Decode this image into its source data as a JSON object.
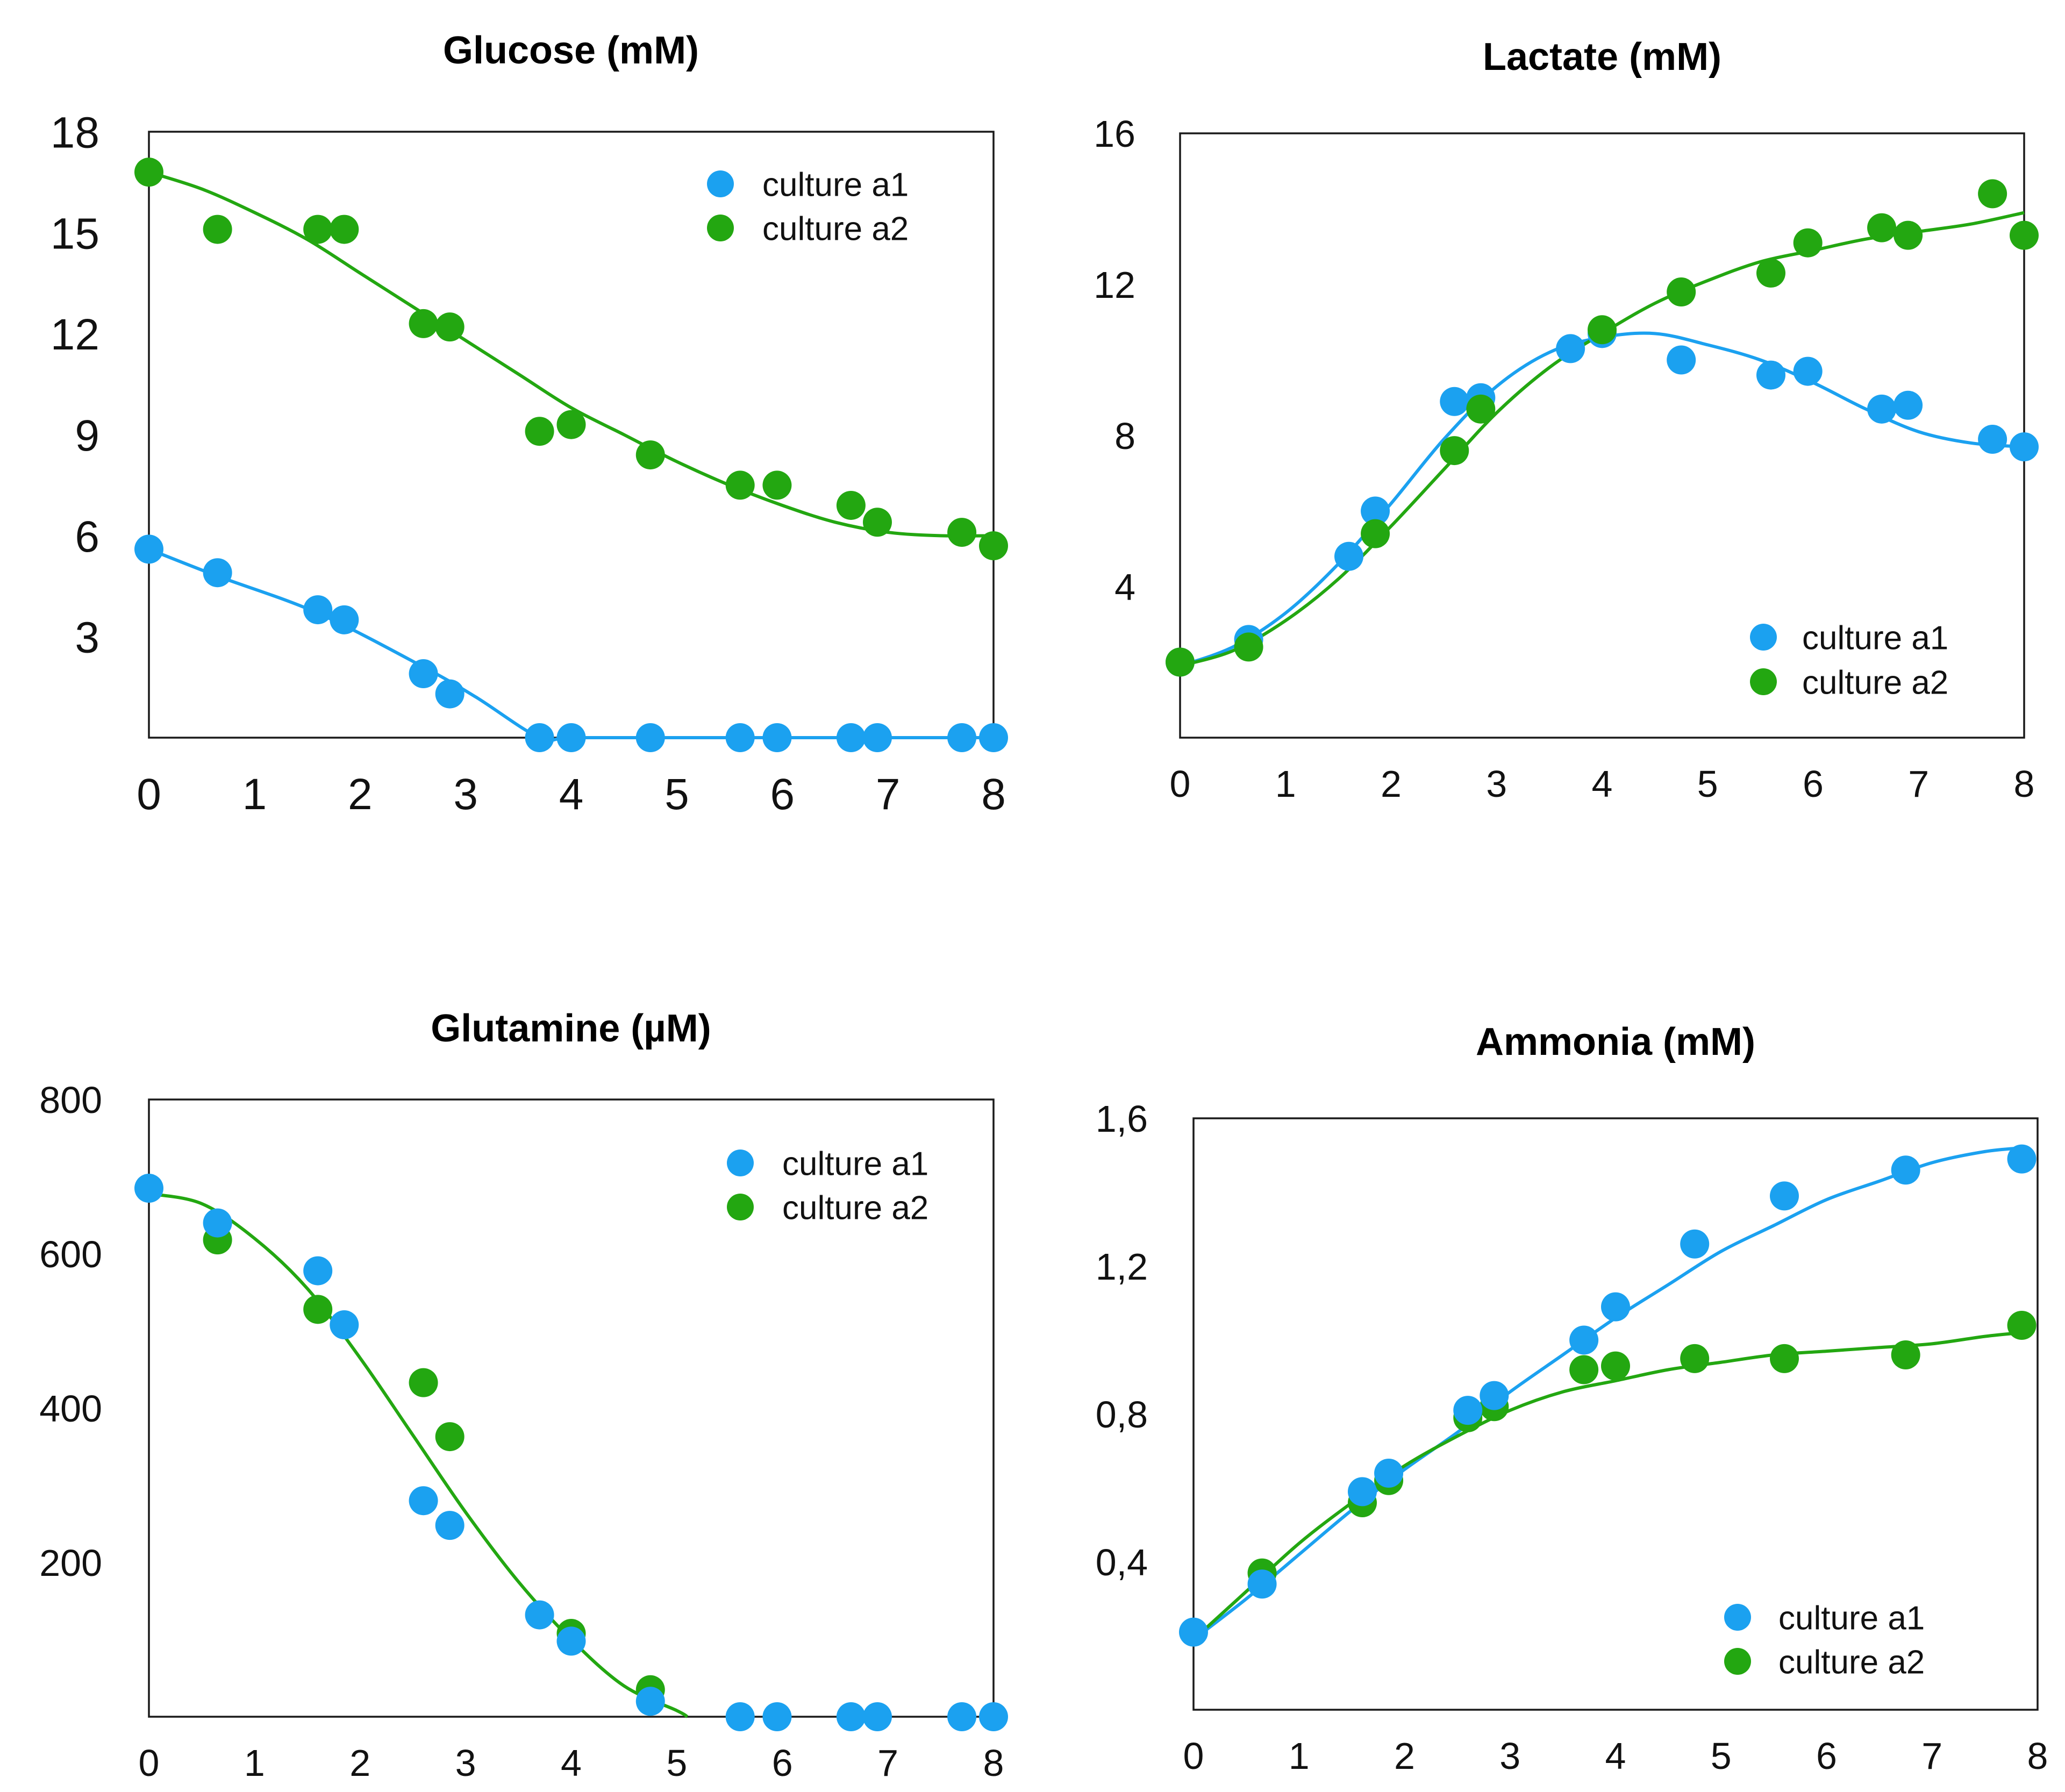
{
  "colors": {
    "culture_a1": "#1ba1f0",
    "culture_a2": "#23a711"
  },
  "chart_data": [
    {
      "id": "glucose",
      "type": "scatter",
      "title": "Glucose (mM)",
      "xlabel": "",
      "ylabel": "",
      "xlim": [
        0,
        8
      ],
      "ylim": [
        0,
        18
      ],
      "x_ticks": [
        0,
        1,
        2,
        3,
        4,
        5,
        6,
        7,
        8
      ],
      "x_tick_labels": [
        "0",
        "1",
        "2",
        "3",
        "4",
        "5",
        "6",
        "7",
        "8"
      ],
      "y_ticks": [
        3,
        6,
        9,
        12,
        15,
        18
      ],
      "y_tick_labels": [
        "3",
        "6",
        "9",
        "12",
        "15",
        "18"
      ],
      "legend": {
        "position": "top-right",
        "entries": [
          "culture a1",
          "culture a2"
        ]
      },
      "series": [
        {
          "name": "culture a1",
          "x": [
            0,
            0.65,
            1.6,
            1.85,
            2.6,
            2.85,
            3.7,
            4.0,
            4.75,
            5.6,
            5.95,
            6.65,
            6.9,
            7.7,
            8.0
          ],
          "y": [
            5.6,
            4.9,
            3.8,
            3.5,
            1.9,
            1.3,
            0,
            0,
            0,
            0,
            0,
            0,
            0,
            0,
            0
          ],
          "fit_x": [
            0,
            0.65,
            1.6,
            2.6,
            3.1,
            3.7,
            4.0,
            5.0,
            6.0,
            7.0,
            8.0
          ],
          "fit_y": [
            5.6,
            4.8,
            3.7,
            2.1,
            1.2,
            0,
            0,
            0,
            0,
            0,
            0
          ]
        },
        {
          "name": "culture a2",
          "x": [
            0,
            0.65,
            1.6,
            1.85,
            2.6,
            2.85,
            3.7,
            4.0,
            4.75,
            5.6,
            5.95,
            6.65,
            6.9,
            7.7,
            8.0
          ],
          "y": [
            16.8,
            15.1,
            15.1,
            15.1,
            12.3,
            12.2,
            9.1,
            9.3,
            8.4,
            7.5,
            7.5,
            6.9,
            6.4,
            6.1,
            5.7
          ],
          "fit_x": [
            0,
            0.5,
            1.0,
            1.5,
            2.0,
            2.5,
            3.0,
            3.5,
            4.0,
            4.5,
            5.0,
            5.5,
            6.0,
            6.5,
            7.0,
            7.5,
            8.0
          ],
          "fit_y": [
            16.8,
            16.3,
            15.6,
            14.8,
            13.8,
            12.8,
            11.8,
            10.8,
            9.8,
            9.0,
            8.2,
            7.5,
            6.9,
            6.4,
            6.1,
            6.0,
            6.0
          ]
        }
      ]
    },
    {
      "id": "lactate",
      "type": "scatter",
      "title": "Lactate (mM)",
      "xlabel": "",
      "ylabel": "",
      "xlim": [
        0,
        8
      ],
      "ylim": [
        0,
        16
      ],
      "x_ticks": [
        0,
        1,
        2,
        3,
        4,
        5,
        6,
        7,
        8
      ],
      "x_tick_labels": [
        "0",
        "1",
        "2",
        "3",
        "4",
        "5",
        "6",
        "7",
        "8"
      ],
      "y_ticks": [
        4,
        8,
        12,
        16
      ],
      "y_tick_labels": [
        "4",
        "8",
        "12",
        "16"
      ],
      "legend": {
        "position": "bottom-right",
        "entries": [
          "culture a1",
          "culture a2"
        ]
      },
      "series": [
        {
          "name": "culture a1",
          "x": [
            0,
            0.65,
            1.6,
            1.85,
            2.6,
            2.85,
            3.7,
            4.0,
            4.75,
            5.6,
            5.95,
            6.65,
            6.9,
            7.7,
            8.0
          ],
          "y": [
            2.0,
            2.6,
            4.8,
            6.0,
            8.9,
            9.0,
            10.3,
            10.7,
            10.0,
            9.6,
            9.7,
            8.7,
            8.8,
            7.9,
            7.7
          ],
          "fit_x": [
            0,
            0.5,
            1.0,
            1.5,
            2.0,
            2.5,
            3.0,
            3.5,
            4.0,
            4.5,
            5.0,
            5.5,
            6.0,
            6.5,
            7.0,
            7.5,
            8.0
          ],
          "fit_y": [
            1.9,
            2.4,
            3.3,
            4.6,
            6.2,
            7.9,
            9.3,
            10.2,
            10.6,
            10.7,
            10.4,
            10.0,
            9.4,
            8.7,
            8.1,
            7.8,
            7.7
          ]
        },
        {
          "name": "culture a2",
          "x": [
            0,
            0.65,
            1.85,
            2.6,
            2.85,
            4.0,
            4.75,
            5.6,
            5.95,
            6.65,
            6.9,
            7.7,
            8.0
          ],
          "y": [
            2.0,
            2.4,
            5.4,
            7.6,
            8.7,
            10.8,
            11.8,
            12.3,
            13.1,
            13.5,
            13.3,
            14.4,
            13.3
          ],
          "fit_x": [
            0,
            0.5,
            1.0,
            1.5,
            2.0,
            2.5,
            3.0,
            3.5,
            4.0,
            4.5,
            5.0,
            5.5,
            6.0,
            6.5,
            7.0,
            7.5,
            8.0
          ],
          "fit_y": [
            1.9,
            2.3,
            3.1,
            4.2,
            5.6,
            7.1,
            8.6,
            9.8,
            10.7,
            11.5,
            12.1,
            12.6,
            12.9,
            13.2,
            13.4,
            13.6,
            13.9
          ]
        }
      ]
    },
    {
      "id": "glutamine",
      "type": "scatter",
      "title": "Glutamine (µM)",
      "xlabel": "",
      "ylabel": "",
      "xlim": [
        0,
        8
      ],
      "ylim": [
        0,
        800
      ],
      "x_ticks": [
        0,
        1,
        2,
        3,
        4,
        5,
        6,
        7,
        8
      ],
      "x_tick_labels": [
        "0",
        "1",
        "2",
        "3",
        "4",
        "5",
        "6",
        "7",
        "8"
      ],
      "y_ticks": [
        200,
        400,
        600,
        800
      ],
      "y_tick_labels": [
        "200",
        "400",
        "600",
        "800"
      ],
      "legend": {
        "position": "top-right",
        "entries": [
          "culture a1",
          "culture a2"
        ]
      },
      "series": [
        {
          "name": "culture a1",
          "x": [
            0,
            0.65,
            1.6,
            1.85,
            2.6,
            2.85,
            3.7,
            4.0,
            4.75,
            5.6,
            5.95,
            6.65,
            6.9,
            7.7,
            8.0
          ],
          "y": [
            685,
            640,
            578,
            508,
            280,
            248,
            132,
            98,
            20,
            0,
            0,
            0,
            0,
            0,
            0
          ]
        },
        {
          "name": "culture a2",
          "x": [
            0.65,
            1.6,
            2.6,
            2.85,
            4.0,
            4.75
          ],
          "y": [
            618,
            528,
            433,
            363,
            108,
            35
          ],
          "fit_x": [
            0,
            0.5,
            1.0,
            1.5,
            2.0,
            2.5,
            3.0,
            3.5,
            4.0,
            4.5,
            5.0,
            5.1
          ],
          "fit_y": [
            678,
            665,
            620,
            555,
            465,
            365,
            265,
            175,
            100,
            40,
            8,
            0
          ]
        }
      ]
    },
    {
      "id": "ammonia",
      "type": "scatter",
      "title": "Ammonia (mM)",
      "xlabel": "",
      "ylabel": "",
      "xlim": [
        0,
        8
      ],
      "ylim": [
        0,
        1.6
      ],
      "x_ticks": [
        0,
        1,
        2,
        3,
        4,
        5,
        6,
        7,
        8
      ],
      "x_tick_labels": [
        "0",
        "1",
        "2",
        "3",
        "4",
        "5",
        "6",
        "7",
        "8"
      ],
      "y_ticks": [
        0.4,
        0.8,
        1.2,
        1.6
      ],
      "y_tick_labels": [
        "0,4",
        "0,8",
        "1,2",
        "1,6"
      ],
      "legend": {
        "position": "bottom-right",
        "entries": [
          "culture a1",
          "culture a2"
        ]
      },
      "series": [
        {
          "name": "culture a1",
          "x": [
            0,
            0.65,
            1.6,
            1.85,
            2.6,
            2.85,
            3.7,
            4.0,
            4.75,
            5.6,
            6.75,
            7.85
          ],
          "y": [
            0.21,
            0.34,
            0.59,
            0.64,
            0.81,
            0.85,
            1.0,
            1.09,
            1.26,
            1.39,
            1.46,
            1.49
          ],
          "fit_x": [
            0,
            0.5,
            1.0,
            1.5,
            2.0,
            2.5,
            3.0,
            3.5,
            4.0,
            4.5,
            5.0,
            5.5,
            6.0,
            6.5,
            7.0,
            7.5,
            7.85
          ],
          "fit_y": [
            0.19,
            0.3,
            0.42,
            0.54,
            0.65,
            0.75,
            0.86,
            0.96,
            1.06,
            1.15,
            1.24,
            1.31,
            1.38,
            1.43,
            1.48,
            1.51,
            1.52
          ]
        },
        {
          "name": "culture a2",
          "x": [
            0.65,
            1.6,
            1.85,
            2.6,
            2.85,
            3.7,
            4.0,
            4.75,
            5.6,
            6.75,
            7.85
          ],
          "y": [
            0.37,
            0.56,
            0.62,
            0.79,
            0.82,
            0.92,
            0.93,
            0.95,
            0.95,
            0.96,
            1.04
          ],
          "fit_x": [
            0,
            0.5,
            1.0,
            1.5,
            2.0,
            2.5,
            3.0,
            3.5,
            4.0,
            4.5,
            5.0,
            5.5,
            6.0,
            6.5,
            7.0,
            7.5,
            7.85
          ],
          "fit_y": [
            0.19,
            0.32,
            0.45,
            0.56,
            0.66,
            0.74,
            0.81,
            0.86,
            0.89,
            0.92,
            0.94,
            0.96,
            0.97,
            0.98,
            0.99,
            1.01,
            1.02
          ]
        }
      ]
    }
  ]
}
